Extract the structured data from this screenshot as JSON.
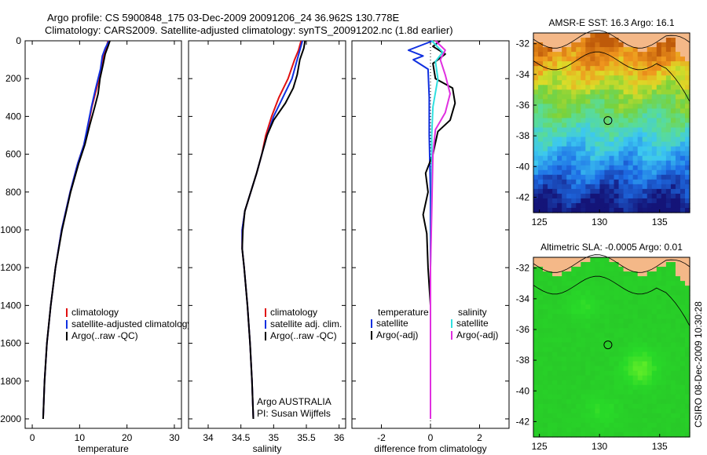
{
  "header": {
    "line1": "Argo profile: CS 5900848_175 03-Dec-2009 20091206_24 36.962S 130.778E",
    "line2": "Climatology: CARS2009. Satellite-adjusted climatology: synTS_20091202.nc (1.8d earlier)"
  },
  "side_text": "CSIRO 08-Dec-2009 10:30:28",
  "colors": {
    "red": "#e01010",
    "blue": "#1030e0",
    "black": "#000000",
    "cyan": "#30e0e0",
    "magenta": "#e030e0",
    "land": "#f4b888"
  },
  "chart_data": [
    {
      "type": "line",
      "id": "temperature",
      "xlabel": "temperature",
      "xlim": [
        -1.5,
        31.5
      ],
      "ylim": [
        0,
        2050
      ],
      "xticks": [
        0,
        10,
        20,
        30
      ],
      "yticks": [
        0,
        200,
        400,
        600,
        800,
        1000,
        1200,
        1400,
        1600,
        1800,
        2000
      ],
      "legend": [
        "climatology",
        "satellite-adjusted climatology",
        "Argo(..raw -QC)"
      ],
      "series": [
        {
          "name": "climatology",
          "color": "red",
          "points": [
            [
              16.0,
              0
            ],
            [
              15.6,
              40
            ],
            [
              15.0,
              80
            ],
            [
              14.6,
              150
            ],
            [
              13.6,
              250
            ],
            [
              12.6,
              350
            ],
            [
              11.8,
              450
            ],
            [
              10.9,
              550
            ],
            [
              9.6,
              650
            ],
            [
              8.0,
              800
            ],
            [
              6.2,
              1000
            ],
            [
              4.9,
              1200
            ],
            [
              3.9,
              1400
            ],
            [
              3.1,
              1600
            ],
            [
              2.6,
              1800
            ],
            [
              2.3,
              2000
            ]
          ]
        },
        {
          "name": "satellite-adjusted climatology",
          "color": "blue",
          "points": [
            [
              16.2,
              0
            ],
            [
              15.4,
              40
            ],
            [
              14.8,
              80
            ],
            [
              14.4,
              150
            ],
            [
              13.4,
              250
            ],
            [
              12.5,
              350
            ],
            [
              11.7,
              450
            ],
            [
              10.9,
              550
            ],
            [
              9.6,
              650
            ],
            [
              8.0,
              800
            ],
            [
              6.2,
              1000
            ],
            [
              4.9,
              1200
            ],
            [
              3.9,
              1400
            ],
            [
              3.1,
              1600
            ],
            [
              2.6,
              1800
            ],
            [
              2.3,
              2000
            ]
          ]
        },
        {
          "name": "Argo(..raw -QC)",
          "color": "black",
          "points": [
            [
              16.4,
              0
            ],
            [
              16.0,
              30
            ],
            [
              15.4,
              70
            ],
            [
              15.0,
              120
            ],
            [
              14.3,
              200
            ],
            [
              13.9,
              280
            ],
            [
              13.2,
              350
            ],
            [
              12.1,
              450
            ],
            [
              11.1,
              550
            ],
            [
              9.8,
              650
            ],
            [
              8.1,
              800
            ],
            [
              6.3,
              1000
            ],
            [
              4.9,
              1200
            ],
            [
              3.9,
              1400
            ],
            [
              3.1,
              1600
            ],
            [
              2.6,
              1800
            ],
            [
              2.3,
              2000
            ]
          ]
        }
      ]
    },
    {
      "type": "line",
      "id": "salinity",
      "xlabel": "salinity",
      "xlim": [
        33.7,
        36.1
      ],
      "ylim": [
        0,
        2050
      ],
      "xticks": [
        34,
        34.5,
        35,
        35.5,
        36
      ],
      "legend": [
        "climatology",
        "satellite adj. clim.",
        "Argo(..raw -QC)"
      ],
      "annotation": [
        "Argo AUSTRALIA",
        "PI: Susan Wijffels"
      ],
      "series": [
        {
          "name": "climatology",
          "color": "red",
          "points": [
            [
              35.42,
              0
            ],
            [
              35.38,
              50
            ],
            [
              35.32,
              100
            ],
            [
              35.22,
              200
            ],
            [
              35.08,
              300
            ],
            [
              34.97,
              400
            ],
            [
              34.88,
              500
            ],
            [
              34.82,
              600
            ],
            [
              34.74,
              700
            ],
            [
              34.65,
              800
            ],
            [
              34.56,
              900
            ],
            [
              34.52,
              1000
            ],
            [
              34.52,
              1100
            ],
            [
              34.55,
              1200
            ],
            [
              34.6,
              1400
            ],
            [
              34.64,
              1600
            ],
            [
              34.67,
              1800
            ],
            [
              34.69,
              2000
            ]
          ]
        },
        {
          "name": "satellite adj. clim.",
          "color": "blue",
          "points": [
            [
              35.44,
              0
            ],
            [
              35.4,
              50
            ],
            [
              35.36,
              100
            ],
            [
              35.28,
              200
            ],
            [
              35.14,
              300
            ],
            [
              35.0,
              400
            ],
            [
              34.9,
              500
            ],
            [
              34.82,
              600
            ],
            [
              34.74,
              700
            ],
            [
              34.65,
              800
            ],
            [
              34.56,
              900
            ],
            [
              34.52,
              1000
            ],
            [
              34.52,
              1100
            ],
            [
              34.55,
              1200
            ],
            [
              34.6,
              1400
            ],
            [
              34.64,
              1600
            ],
            [
              34.67,
              1800
            ],
            [
              34.69,
              2000
            ]
          ]
        },
        {
          "name": "Argo(..raw -QC)",
          "color": "black",
          "points": [
            [
              35.48,
              0
            ],
            [
              35.46,
              40
            ],
            [
              35.4,
              100
            ],
            [
              35.36,
              180
            ],
            [
              35.3,
              250
            ],
            [
              35.18,
              330
            ],
            [
              35.0,
              420
            ],
            [
              34.9,
              500
            ],
            [
              34.82,
              600
            ],
            [
              34.74,
              700
            ],
            [
              34.65,
              800
            ],
            [
              34.56,
              900
            ],
            [
              34.53,
              1000
            ],
            [
              34.52,
              1100
            ],
            [
              34.55,
              1200
            ],
            [
              34.6,
              1400
            ],
            [
              34.64,
              1600
            ],
            [
              34.67,
              1800
            ],
            [
              34.69,
              2000
            ]
          ]
        }
      ]
    },
    {
      "type": "line",
      "id": "difference",
      "xlabel": "difference from climatology",
      "xlim": [
        -3.2,
        3.2
      ],
      "ylim": [
        0,
        2050
      ],
      "xticks": [
        -2,
        0,
        2
      ],
      "legend_headers": [
        "temperature",
        "salinity"
      ],
      "legend": [
        "satellite",
        "Argo(-adj)",
        "satellite",
        "Argo(-adj)"
      ],
      "series": [
        {
          "name": "temperature satellite",
          "color": "blue",
          "points": [
            [
              0.1,
              0
            ],
            [
              -0.9,
              50
            ],
            [
              -0.3,
              80
            ],
            [
              -0.7,
              100
            ],
            [
              -0.1,
              150
            ],
            [
              -0.05,
              300
            ],
            [
              -0.05,
              500
            ],
            [
              0,
              800
            ],
            [
              0,
              1200
            ],
            [
              0,
              2000
            ]
          ]
        },
        {
          "name": "temperature Argo(-adj)",
          "color": "black",
          "points": [
            [
              0.4,
              0
            ],
            [
              0.1,
              30
            ],
            [
              0.6,
              70
            ],
            [
              0.1,
              120
            ],
            [
              0.2,
              200
            ],
            [
              0.9,
              250
            ],
            [
              1.0,
              330
            ],
            [
              0.8,
              420
            ],
            [
              0.3,
              480
            ],
            [
              0.1,
              600
            ],
            [
              -0.2,
              700
            ],
            [
              -0.1,
              800
            ],
            [
              -0.3,
              920
            ],
            [
              -0.15,
              1020
            ],
            [
              -0.1,
              1200
            ],
            [
              0,
              1400
            ],
            [
              0,
              2000
            ]
          ]
        },
        {
          "name": "salinity satellite",
          "color": "cyan",
          "points": [
            [
              0.05,
              0
            ],
            [
              0.5,
              60
            ],
            [
              0.2,
              110
            ],
            [
              0.3,
              200
            ],
            [
              0.1,
              350
            ],
            [
              0.05,
              500
            ],
            [
              0.05,
              800
            ],
            [
              0,
              1200
            ],
            [
              0,
              2000
            ]
          ]
        },
        {
          "name": "salinity Argo(-adj)",
          "color": "magenta",
          "points": [
            [
              0.2,
              0
            ],
            [
              0.6,
              50
            ],
            [
              0.4,
              100
            ],
            [
              0.6,
              180
            ],
            [
              0.8,
              280
            ],
            [
              0.6,
              380
            ],
            [
              0.2,
              470
            ],
            [
              0.1,
              600
            ],
            [
              0.05,
              900
            ],
            [
              0,
              1200
            ],
            [
              0,
              2000
            ]
          ]
        }
      ]
    }
  ],
  "maps": [
    {
      "id": "sst",
      "title": "AMSR-E SST: 16.3 Argo: 16.1",
      "xlim": [
        124.5,
        137.5
      ],
      "ylim": [
        -43,
        -31.3
      ],
      "xticks": [
        125,
        130,
        135
      ],
      "yticks": [
        -32,
        -34,
        -36,
        -38,
        -40,
        -42
      ],
      "marker": [
        130.7,
        -37.0
      ]
    },
    {
      "id": "sla",
      "title": "Altimetric SLA: -0.0005 Argo: 0.01",
      "xlim": [
        124.5,
        137.5
      ],
      "ylim": [
        -43,
        -31.3
      ],
      "xticks": [
        125,
        130,
        135
      ],
      "yticks": [
        -32,
        -34,
        -36,
        -38,
        -40,
        -42
      ],
      "marker": [
        130.7,
        -37.0
      ]
    }
  ]
}
